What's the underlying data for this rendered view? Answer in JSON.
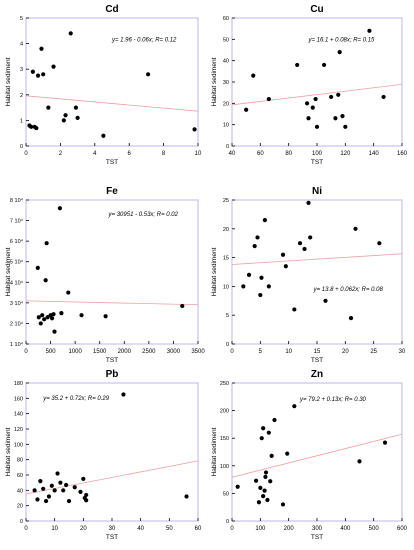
{
  "figure": {
    "ylabel": "Habitat sediment",
    "xlabel": "TST"
  },
  "chart_data": [
    {
      "type": "scatter",
      "title": "Cd",
      "xlabel": "TST",
      "ylabel": "Habitat sediment",
      "xlim": [
        0,
        10
      ],
      "ylim": [
        0,
        5
      ],
      "xticks": [
        "0",
        "2",
        "4",
        "6",
        "8",
        "10"
      ],
      "yticks": [
        "0",
        "1",
        "2",
        "3",
        "4",
        "5"
      ],
      "equation": "y= 1.96 - 0.06x; R= 0.12",
      "trend": {
        "intercept": 1.96,
        "slope": -0.06
      },
      "colors": {
        "frame": "#b8b8ee",
        "points": "#000000",
        "trend": "#f0a0a0"
      },
      "points": [
        [
          0.2,
          0.8
        ],
        [
          0.3,
          0.75
        ],
        [
          0.4,
          2.9
        ],
        [
          0.5,
          0.75
        ],
        [
          0.6,
          0.7
        ],
        [
          0.7,
          2.75
        ],
        [
          0.9,
          3.8
        ],
        [
          1.0,
          2.8
        ],
        [
          1.3,
          1.5
        ],
        [
          1.6,
          3.1
        ],
        [
          2.2,
          1.0
        ],
        [
          2.3,
          1.2
        ],
        [
          2.6,
          4.4
        ],
        [
          2.9,
          1.5
        ],
        [
          3.0,
          1.1
        ],
        [
          4.5,
          0.4
        ],
        [
          7.1,
          2.8
        ],
        [
          9.8,
          0.65
        ]
      ]
    },
    {
      "type": "scatter",
      "title": "Cu",
      "xlabel": "TST",
      "ylabel": "Habitat sediment",
      "xlim": [
        40,
        160
      ],
      "ylim": [
        0,
        60
      ],
      "xticks": [
        "40",
        "60",
        "80",
        "100",
        "120",
        "140",
        "160"
      ],
      "yticks": [
        "0",
        "10",
        "20",
        "30",
        "40",
        "50",
        "60"
      ],
      "equation": "y= 16.1 + 0.08x; R= 0.15",
      "trend": {
        "intercept": 16.1,
        "slope": 0.08
      },
      "colors": {
        "frame": "#b8b8ee",
        "points": "#000000",
        "trend": "#f0a0a0"
      },
      "points": [
        [
          50,
          17
        ],
        [
          55,
          33
        ],
        [
          66,
          22
        ],
        [
          86,
          38
        ],
        [
          93,
          20
        ],
        [
          94,
          13
        ],
        [
          97,
          18
        ],
        [
          99,
          22
        ],
        [
          100,
          9
        ],
        [
          105,
          38
        ],
        [
          110,
          23
        ],
        [
          113,
          13
        ],
        [
          115,
          24
        ],
        [
          116,
          44
        ],
        [
          118,
          14
        ],
        [
          120,
          9
        ],
        [
          137,
          54
        ],
        [
          147,
          23
        ]
      ]
    },
    {
      "type": "scatter",
      "title": "Fe",
      "xlabel": "TST",
      "ylabel": "Habitat sediment",
      "xlim": [
        0,
        3500
      ],
      "ylim": [
        10000,
        80000
      ],
      "xticks": [
        "0",
        "500",
        "1000",
        "1500",
        "2000",
        "2500",
        "3000",
        "3500"
      ],
      "yticks": [
        "1 10⁴",
        "2 10⁴",
        "3 10⁴",
        "4 10⁴",
        "5 10⁴",
        "6 10⁴",
        "7 10⁴",
        "8 10⁴"
      ],
      "equation": "y= 30951 - 0.53x; R= 0.02",
      "trend": {
        "intercept": 30951,
        "slope": -0.53
      },
      "colors": {
        "frame": "#b8b8ee",
        "points": "#000000",
        "trend": "#f0a0a0"
      },
      "points": [
        [
          240,
          47000
        ],
        [
          260,
          23000
        ],
        [
          300,
          20000
        ],
        [
          330,
          24000
        ],
        [
          370,
          22000
        ],
        [
          400,
          41000
        ],
        [
          420,
          59000
        ],
        [
          440,
          23000
        ],
        [
          500,
          24000
        ],
        [
          530,
          22500
        ],
        [
          580,
          16000
        ],
        [
          690,
          76000
        ],
        [
          720,
          25000
        ],
        [
          860,
          35000
        ],
        [
          1130,
          24000
        ],
        [
          1620,
          23500
        ],
        [
          3180,
          28500
        ],
        [
          560,
          24500
        ]
      ]
    },
    {
      "type": "scatter",
      "title": "Ni",
      "xlabel": "TST",
      "ylabel": "Habitat sediment",
      "xlim": [
        0,
        30
      ],
      "ylim": [
        0,
        25
      ],
      "xticks": [
        "0",
        "5",
        "10",
        "15",
        "20",
        "25",
        "30"
      ],
      "yticks": [
        "0",
        "5",
        "10",
        "15",
        "20",
        "25"
      ],
      "equation": "y= 13.8 + 0.062x; R= 0.08",
      "trend": {
        "intercept": 13.8,
        "slope": 0.062
      },
      "colors": {
        "frame": "#b8b8ee",
        "points": "#000000",
        "trend": "#f0a0a0"
      },
      "points": [
        [
          2,
          10
        ],
        [
          3,
          12
        ],
        [
          4,
          17
        ],
        [
          4.5,
          18.5
        ],
        [
          5,
          8.5
        ],
        [
          5.2,
          11.5
        ],
        [
          5.8,
          21.5
        ],
        [
          6.5,
          10
        ],
        [
          9,
          15.5
        ],
        [
          9.5,
          13.5
        ],
        [
          11,
          6
        ],
        [
          12,
          17.5
        ],
        [
          13.5,
          24.5
        ],
        [
          13.8,
          18.5
        ],
        [
          12.8,
          16.5
        ],
        [
          16.5,
          7.5
        ],
        [
          21,
          4.5
        ],
        [
          21.8,
          20
        ],
        [
          26,
          17.5
        ]
      ]
    },
    {
      "type": "scatter",
      "title": "Pb",
      "xlabel": "TST",
      "ylabel": "Habitat sediment",
      "xlim": [
        0,
        60
      ],
      "ylim": [
        0,
        180
      ],
      "xticks": [
        "0",
        "10",
        "20",
        "30",
        "40",
        "50",
        "60"
      ],
      "yticks": [
        "0",
        "20",
        "40",
        "60",
        "80",
        "100",
        "120",
        "140",
        "160",
        "180"
      ],
      "equation": "y= 35.2 + 0.72x; R= 0.29",
      "trend": {
        "intercept": 35.2,
        "slope": 0.72
      },
      "colors": {
        "frame": "#b8b8ee",
        "points": "#000000",
        "trend": "#f0a0a0"
      },
      "points": [
        [
          3,
          40
        ],
        [
          4,
          28
        ],
        [
          5,
          52
        ],
        [
          6,
          42
        ],
        [
          7,
          26
        ],
        [
          8,
          32
        ],
        [
          9,
          46
        ],
        [
          10,
          40
        ],
        [
          11,
          62
        ],
        [
          12,
          50
        ],
        [
          13,
          40
        ],
        [
          14,
          47
        ],
        [
          15,
          26
        ],
        [
          17,
          44
        ],
        [
          19,
          38
        ],
        [
          20,
          55
        ],
        [
          20.5,
          30
        ],
        [
          21,
          34
        ],
        [
          21,
          27
        ],
        [
          34,
          165
        ],
        [
          56,
          32
        ]
      ]
    },
    {
      "type": "scatter",
      "title": "Zn",
      "xlabel": "TST",
      "ylabel": "Habitat sediment",
      "xlim": [
        0,
        600
      ],
      "ylim": [
        0,
        250
      ],
      "xticks": [
        "0",
        "100",
        "200",
        "300",
        "400",
        "500",
        "600"
      ],
      "yticks": [
        "0",
        "50",
        "100",
        "150",
        "200",
        "250"
      ],
      "equation": "y= 79.2 + 0.13x; R= 0.30",
      "trend": {
        "intercept": 79.2,
        "slope": 0.13
      },
      "colors": {
        "frame": "#b8b8ee",
        "points": "#000000",
        "trend": "#f0a0a0"
      },
      "points": [
        [
          20,
          62
        ],
        [
          85,
          73
        ],
        [
          95,
          34
        ],
        [
          100,
          60
        ],
        [
          105,
          150
        ],
        [
          110,
          168
        ],
        [
          110,
          45
        ],
        [
          115,
          55
        ],
        [
          118,
          80
        ],
        [
          120,
          88
        ],
        [
          125,
          38
        ],
        [
          130,
          160
        ],
        [
          135,
          72
        ],
        [
          140,
          118
        ],
        [
          150,
          183
        ],
        [
          180,
          30
        ],
        [
          195,
          122
        ],
        [
          220,
          208
        ],
        [
          450,
          108
        ],
        [
          540,
          142
        ]
      ]
    }
  ]
}
